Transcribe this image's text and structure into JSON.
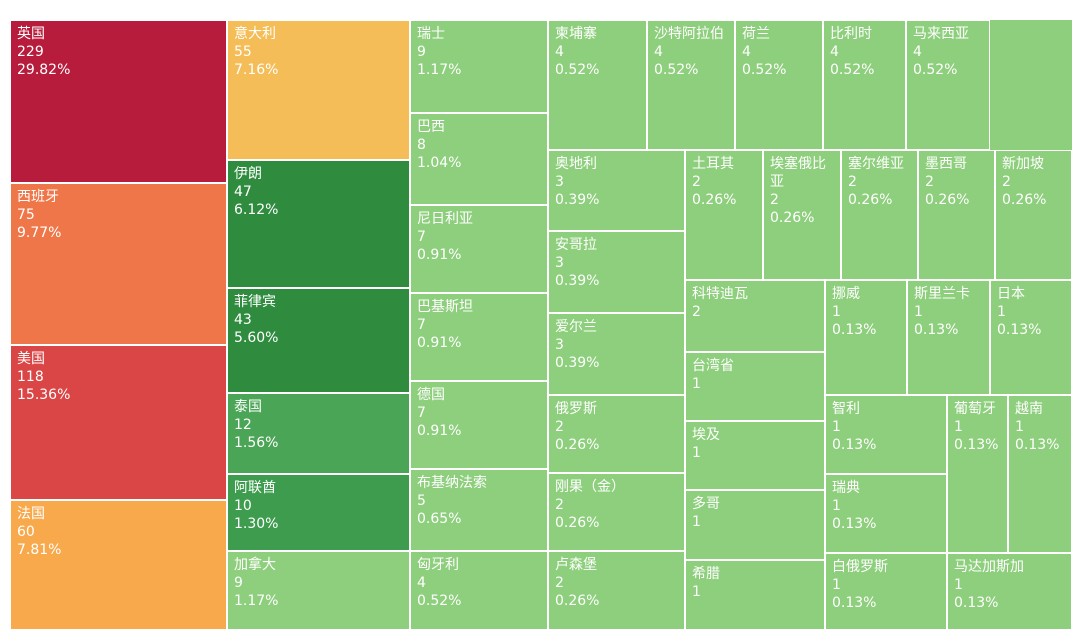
{
  "chart_data": {
    "type": "treemap",
    "categories": [
      "英国",
      "西班牙",
      "美国",
      "法国",
      "意大利",
      "伊朗",
      "菲律宾",
      "泰国",
      "阿联酋",
      "加拿大",
      "瑞士",
      "巴西",
      "尼日利亚",
      "巴基斯坦",
      "德国",
      "布基纳法索",
      "匈牙利",
      "柬埔寨",
      "沙特阿拉伯",
      "荷兰",
      "比利时",
      "马来西亚",
      "奥地利",
      "安哥拉",
      "爱尔兰",
      "俄罗斯",
      "刚果（金）",
      "卢森堡",
      "土耳其",
      "埃塞俄比亚",
      "塞尔维亚",
      "墨西哥",
      "新加坡",
      "科特迪瓦",
      "台湾省",
      "埃及",
      "多哥",
      "希腊",
      "挪威",
      "斯里兰卡",
      "日本",
      "智利",
      "瑞典",
      "葡萄牙",
      "越南",
      "白俄罗斯",
      "马达加斯加"
    ],
    "values": [
      229,
      75,
      118,
      60,
      55,
      47,
      43,
      12,
      10,
      9,
      9,
      8,
      7,
      7,
      7,
      5,
      4,
      4,
      4,
      4,
      4,
      4,
      3,
      3,
      3,
      2,
      2,
      2,
      2,
      2,
      2,
      2,
      2,
      2,
      1,
      1,
      1,
      1,
      1,
      1,
      1,
      1,
      1,
      1,
      1,
      1,
      1
    ],
    "percent_labels": [
      "29.82%",
      "9.77%",
      "15.36%",
      "7.81%",
      "7.16%",
      "6.12%",
      "5.60%",
      "1.56%",
      "1.30%",
      "1.17%",
      "1.17%",
      "1.04%",
      "0.91%",
      "0.91%",
      "0.91%",
      "0.65%",
      "0.52%",
      "0.52%",
      "0.52%",
      "0.52%",
      "0.52%",
      "0.52%",
      "0.39%",
      "0.39%",
      "0.39%",
      "0.26%",
      "0.26%",
      "0.26%",
      "0.26%",
      "0.26%",
      "0.26%",
      "0.26%",
      "0.26%",
      null,
      null,
      null,
      null,
      null,
      "0.13%",
      "0.13%",
      "0.13%",
      "0.13%",
      "0.13%",
      "0.13%",
      "0.13%",
      "0.13%",
      "0.13%"
    ],
    "colors": [
      "#b71c3c",
      "#ef7648",
      "#da4545",
      "#f7a94c",
      "#f5bd57",
      "#2f8c3f",
      "#2f8c3f",
      "#4aa556",
      "#3d9c4d",
      "#8dcf7c",
      "#8dcf7c",
      "#8dcf7c",
      "#8dcf7c",
      "#8dcf7c",
      "#8dcf7c",
      "#8dcf7c",
      "#8dcf7c",
      "#8dcf7c",
      "#8dcf7c",
      "#8dcf7c",
      "#8dcf7c",
      "#8dcf7c",
      "#8dcf7c",
      "#8dcf7c",
      "#8dcf7c",
      "#8dcf7c",
      "#8dcf7c",
      "#8dcf7c",
      "#8dcf7c",
      "#8dcf7c",
      "#8dcf7c",
      "#8dcf7c",
      "#8dcf7c",
      "#8dcf7c",
      "#8dcf7c",
      "#8dcf7c",
      "#8dcf7c",
      "#8dcf7c",
      "#8dcf7c",
      "#8dcf7c",
      "#8dcf7c",
      "#8dcf7c",
      "#8dcf7c",
      "#8dcf7c",
      "#8dcf7c",
      "#8dcf7c",
      "#8dcf7c"
    ]
  }
}
